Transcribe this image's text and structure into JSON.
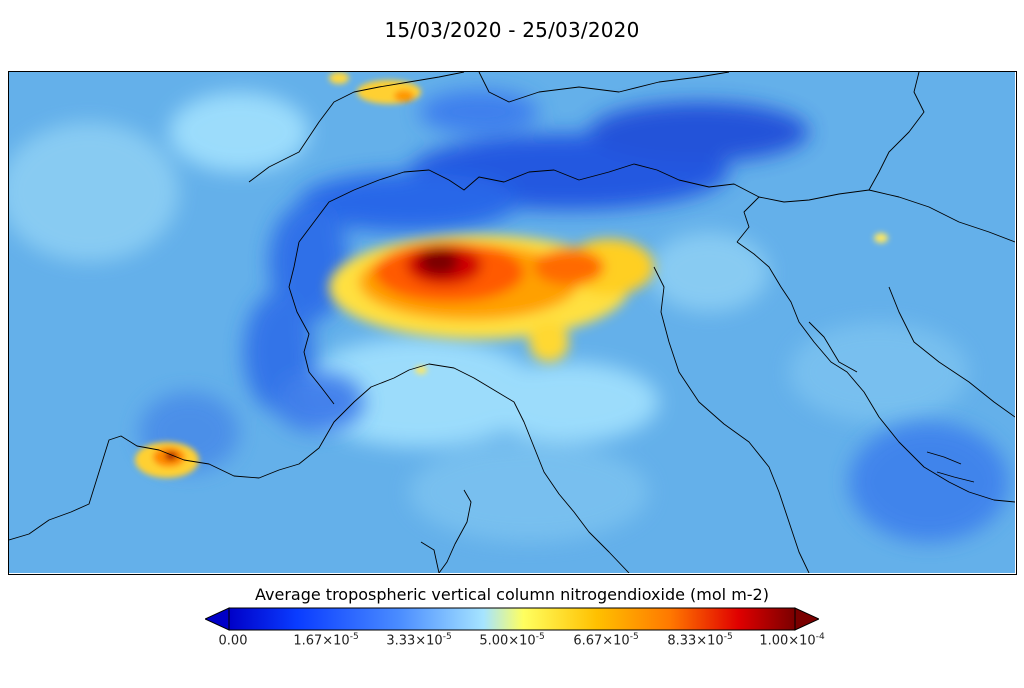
{
  "title": "15/03/2020 - 25/03/2020",
  "colorbar": {
    "label": "Average tropospheric vertical column nitrogendioxide (mol m-2)",
    "ticks": [
      {
        "mantissa": "0.00",
        "exp": ""
      },
      {
        "mantissa": "1.67×10",
        "exp": "-5"
      },
      {
        "mantissa": "3.33×10",
        "exp": "-5"
      },
      {
        "mantissa": "5.00×10",
        "exp": "-5"
      },
      {
        "mantissa": "6.67×10",
        "exp": "-5"
      },
      {
        "mantissa": "8.33×10",
        "exp": "-5"
      },
      {
        "mantissa": "1.00×10",
        "exp": "-4"
      }
    ],
    "range": [
      0,
      0.0001
    ],
    "extend": "both",
    "colors": [
      "#0000c8",
      "#0a3cff",
      "#4a8cff",
      "#a6e4ff",
      "#ffff60",
      "#ffc000",
      "#ff7800",
      "#e00000",
      "#7a0000"
    ]
  },
  "map": {
    "background_level": "#64b0ea",
    "region": "Northern Italy / Alps",
    "hotspot_level": "#7a0000"
  }
}
